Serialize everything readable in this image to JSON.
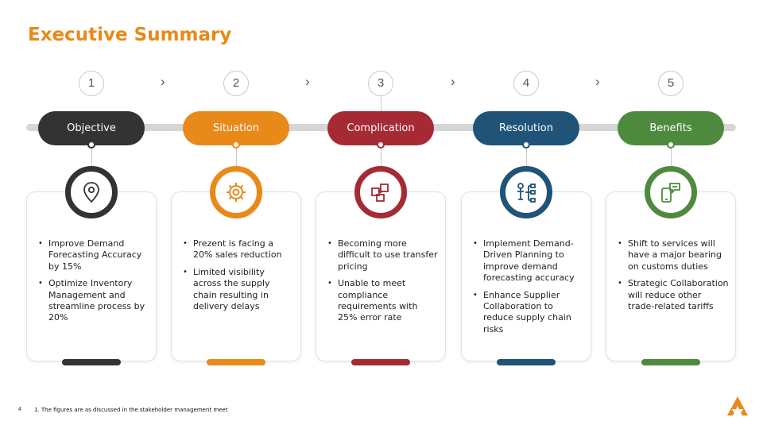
{
  "title": "Executive Summary",
  "steps": [
    {
      "number": "1",
      "label": "Objective",
      "color": "#333333",
      "icon": "location-pin-icon",
      "bullets": [
        "Improve Demand Forecasting Accuracy by 15%",
        "Optimize Inventory Management and streamline process by 20%"
      ]
    },
    {
      "number": "2",
      "label": "Situation",
      "color": "#E8891A",
      "icon": "gear-icon",
      "bullets": [
        "Prezent is facing a 20% sales reduction",
        "Limited visibility across the supply chain resulting in delivery delays"
      ]
    },
    {
      "number": "3",
      "label": "Complication",
      "color": "#A62A33",
      "icon": "puzzle-icon",
      "bullets": [
        "Becoming more difficult to use transfer pricing",
        "Unable to meet compliance requirements with 25% error rate"
      ]
    },
    {
      "number": "4",
      "label": "Resolution",
      "color": "#1F5478",
      "icon": "org-chart-icon",
      "bullets": [
        "Implement Demand-Driven Planning to improve demand forecasting accuracy",
        "Enhance Supplier Collaboration to reduce supply chain risks"
      ]
    },
    {
      "number": "5",
      "label": "Benefits",
      "color": "#4E8A3E",
      "icon": "mobile-chat-icon",
      "bullets": [
        "Shift to services will have a major bearing on customs duties",
        "Strategic Collaboration will reduce other trade-related tariffs"
      ]
    }
  ],
  "separator": "›",
  "footer": {
    "page_number": "4",
    "note": "1. The figures are as discussed in the stakeholder management meet"
  },
  "colors": {
    "title": "#E8891A",
    "track": "#D6D6D6"
  }
}
